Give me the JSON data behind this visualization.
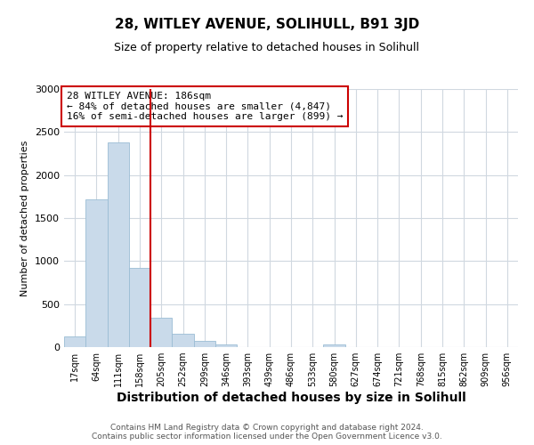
{
  "title": "28, WITLEY AVENUE, SOLIHULL, B91 3JD",
  "subtitle": "Size of property relative to detached houses in Solihull",
  "xlabel": "Distribution of detached houses by size in Solihull",
  "ylabel": "Number of detached properties",
  "footer_line1": "Contains HM Land Registry data © Crown copyright and database right 2024.",
  "footer_line2": "Contains public sector information licensed under the Open Government Licence v3.0.",
  "annotation_line1": "28 WITLEY AVENUE: 186sqm",
  "annotation_line2": "← 84% of detached houses are smaller (4,847)",
  "annotation_line3": "16% of semi-detached houses are larger (899) →",
  "bar_color": "#c9daea",
  "bar_edge_color": "#9bbdd4",
  "vline_color": "#cc0000",
  "vline_x_index": 4,
  "categories": [
    "17sqm",
    "64sqm",
    "111sqm",
    "158sqm",
    "205sqm",
    "252sqm",
    "299sqm",
    "346sqm",
    "393sqm",
    "439sqm",
    "486sqm",
    "533sqm",
    "580sqm",
    "627sqm",
    "674sqm",
    "721sqm",
    "768sqm",
    "815sqm",
    "862sqm",
    "909sqm",
    "956sqm"
  ],
  "values": [
    120,
    1720,
    2380,
    920,
    340,
    155,
    70,
    30,
    5,
    0,
    0,
    0,
    30,
    0,
    0,
    0,
    0,
    0,
    0,
    0,
    0
  ],
  "ylim": [
    0,
    3000
  ],
  "yticks": [
    0,
    500,
    1000,
    1500,
    2000,
    2500,
    3000
  ],
  "background_color": "#ffffff",
  "grid_color": "#d0d8e0",
  "title_fontsize": 11,
  "subtitle_fontsize": 9,
  "xlabel_fontsize": 10,
  "ylabel_fontsize": 8,
  "xtick_fontsize": 7,
  "ytick_fontsize": 8,
  "footer_fontsize": 6.5,
  "annotation_fontsize": 8
}
